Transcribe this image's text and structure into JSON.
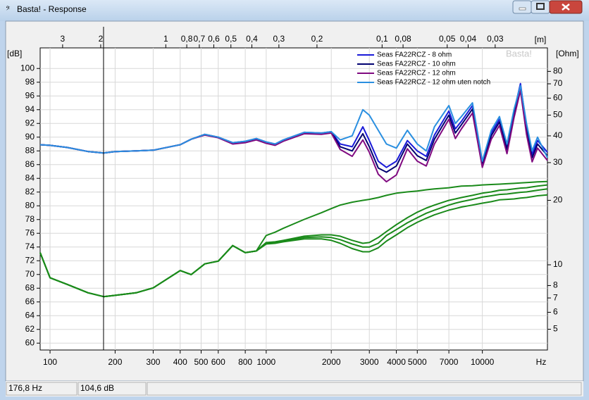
{
  "window": {
    "title": "Basta! - Response",
    "watermark": "Basta!",
    "status": [
      "176,8 Hz",
      "104,6 dB"
    ]
  },
  "chart_data": {
    "type": "line",
    "ylabel": "[dB]",
    "y2label": "[Ohm]",
    "xlabel": "Hz",
    "x2label": "[m]",
    "xscale": "log",
    "y2scale": "log",
    "x2scale": "log",
    "grid": true,
    "legend": "top-right",
    "xlim": [
      90,
      20000
    ],
    "ylim": [
      59,
      103
    ],
    "y2lim": [
      4,
      103
    ],
    "x2lim": [
      3.81,
      0.0172
    ],
    "xticks": [
      100,
      200,
      300,
      400,
      500,
      600,
      800,
      1000,
      2000,
      3000,
      4000,
      5000,
      7000,
      10000
    ],
    "yticks": [
      60,
      62,
      64,
      66,
      68,
      70,
      72,
      74,
      76,
      78,
      80,
      82,
      84,
      86,
      88,
      90,
      92,
      94,
      96,
      98,
      100
    ],
    "y2ticks": [
      5,
      6,
      7,
      8,
      10,
      20,
      30,
      40,
      50,
      60,
      70,
      80
    ],
    "x2ticks": [
      3,
      2,
      1,
      {
        "value": 0.8,
        "label": "0,8"
      },
      {
        "value": 0.7,
        "label": "0,7"
      },
      {
        "value": 0.6,
        "label": "0,6"
      },
      {
        "value": 0.5,
        "label": "0,5"
      },
      {
        "value": 0.4,
        "label": "0,4"
      },
      {
        "value": 0.3,
        "label": "0,3"
      },
      {
        "value": 0.2,
        "label": "0,2"
      },
      {
        "value": 0.1,
        "label": "0,1"
      },
      {
        "value": 0.08,
        "label": "0,08"
      },
      {
        "value": 0.05,
        "label": "0,05"
      },
      {
        "value": 0.04,
        "label": "0,04"
      },
      {
        "value": 0.03,
        "label": "0,03"
      }
    ],
    "cursor": {
      "value": 176.8,
      "label": "176,8 Hz"
    },
    "x": [
      90,
      100,
      120,
      150,
      177,
      200,
      250,
      300,
      400,
      450,
      520,
      600,
      700,
      800,
      900,
      1000,
      1100,
      1200,
      1500,
      1800,
      2000,
      2200,
      2500,
      2800,
      3000,
      3300,
      3600,
      4000,
      4500,
      5000,
      5500,
      6000,
      7000,
      7500,
      8000,
      9000,
      10000,
      11000,
      12000,
      13000,
      14000,
      15000,
      16000,
      17000,
      18000,
      20000
    ],
    "series": [
      {
        "name": "Seas FA22RCZ - 8 ohm",
        "color": "#1a1ad8",
        "values": [
          88.9,
          88.8,
          88.5,
          87.9,
          87.7,
          87.9,
          88.0,
          88.1,
          88.9,
          89.7,
          90.4,
          90.0,
          89.2,
          89.4,
          89.8,
          89.3,
          89.0,
          89.6,
          90.7,
          90.6,
          90.8,
          89.0,
          88.6,
          91.5,
          89.5,
          86.5,
          85.6,
          86.5,
          89.5,
          88.0,
          87.2,
          90.3,
          93.8,
          91.2,
          92.3,
          94.6,
          86.3,
          90.6,
          92.6,
          88.6,
          93.7,
          97.8,
          91.5,
          87.5,
          89.5,
          87.8
        ]
      },
      {
        "name": "Seas FA22RCZ - 10 ohm",
        "color": "#000070",
        "values": [
          88.9,
          88.8,
          88.5,
          87.9,
          87.7,
          87.9,
          88.0,
          88.1,
          88.9,
          89.7,
          90.4,
          90.0,
          89.1,
          89.3,
          89.7,
          89.2,
          88.9,
          89.5,
          90.6,
          90.5,
          90.7,
          88.6,
          88.0,
          90.5,
          88.6,
          85.5,
          84.9,
          85.8,
          89.0,
          87.3,
          86.6,
          89.7,
          93.2,
          90.6,
          91.8,
          94.1,
          86.0,
          90.2,
          92.2,
          88.2,
          93.3,
          97.3,
          91.0,
          87.0,
          89.0,
          87.3
        ]
      },
      {
        "name": "Seas FA22RCZ - 12 ohm",
        "color": "#800a80",
        "values": [
          88.9,
          88.8,
          88.5,
          87.9,
          87.7,
          87.9,
          88.0,
          88.1,
          88.9,
          89.7,
          90.3,
          89.9,
          89.0,
          89.2,
          89.6,
          89.1,
          88.8,
          89.4,
          90.5,
          90.4,
          90.6,
          88.2,
          87.2,
          89.6,
          87.8,
          84.6,
          83.5,
          84.5,
          88.3,
          86.5,
          85.8,
          89.0,
          92.6,
          89.8,
          91.2,
          93.5,
          85.6,
          89.7,
          91.7,
          87.6,
          92.8,
          96.8,
          90.4,
          86.4,
          88.4,
          86.6
        ]
      },
      {
        "name": "Seas FA22RCZ - 12 ohm uten notch",
        "color": "#2a8fe0",
        "values": [
          88.9,
          88.8,
          88.5,
          87.9,
          87.7,
          87.9,
          88.0,
          88.1,
          88.9,
          89.7,
          90.4,
          90.0,
          89.2,
          89.4,
          89.8,
          89.3,
          89.0,
          89.6,
          90.7,
          90.6,
          90.8,
          89.6,
          90.2,
          94.0,
          93.2,
          91.0,
          89.0,
          88.4,
          91.0,
          89.0,
          88.0,
          91.5,
          94.6,
          92.0,
          93.0,
          95.0,
          86.5,
          91.0,
          93.0,
          89.0,
          94.0,
          97.5,
          92.0,
          88.0,
          90.0,
          87.0
        ]
      },
      {
        "axis": "y2",
        "color": "#1a8a1a",
        "values": [
          11.4,
          8.7,
          8.1,
          7.4,
          7.1,
          7.2,
          7.4,
          7.8,
          9.4,
          9.0,
          10.1,
          10.4,
          12.3,
          11.4,
          11.6,
          12.7,
          12.8,
          13.0,
          13.6,
          13.8,
          13.8,
          13.6,
          13.0,
          12.6,
          12.7,
          13.4,
          14.3,
          15.4,
          16.6,
          17.6,
          18.4,
          19.0,
          20.0,
          20.3,
          20.6,
          21.1,
          21.6,
          21.9,
          22.3,
          22.4,
          22.6,
          22.8,
          22.9,
          23.1,
          23.3,
          23.6
        ]
      },
      {
        "axis": "y2",
        "color": "#1a8a1a",
        "values": [
          11.4,
          8.7,
          8.1,
          7.4,
          7.1,
          7.2,
          7.4,
          7.8,
          9.4,
          9.0,
          10.1,
          10.4,
          12.3,
          11.4,
          11.6,
          12.6,
          12.7,
          12.9,
          13.4,
          13.5,
          13.4,
          13.1,
          12.5,
          12.1,
          12.1,
          12.6,
          13.7,
          14.6,
          15.7,
          16.6,
          17.4,
          18.0,
          19.0,
          19.4,
          19.7,
          20.2,
          20.7,
          21.0,
          21.3,
          21.4,
          21.6,
          21.8,
          21.9,
          22.1,
          22.3,
          22.6
        ]
      },
      {
        "axis": "y2",
        "color": "#1a8a1a",
        "values": [
          11.4,
          8.7,
          8.1,
          7.4,
          7.1,
          7.2,
          7.4,
          7.8,
          9.4,
          9.0,
          10.1,
          10.4,
          12.3,
          11.4,
          11.6,
          12.5,
          12.6,
          12.8,
          13.2,
          13.2,
          13.0,
          12.6,
          11.9,
          11.5,
          11.5,
          12.0,
          12.9,
          13.8,
          14.9,
          15.8,
          16.5,
          17.1,
          18.0,
          18.3,
          18.6,
          19.0,
          19.4,
          19.7,
          20.1,
          20.2,
          20.3,
          20.5,
          20.6,
          20.8,
          21.0,
          21.2
        ]
      },
      {
        "axis": "y2",
        "color": "#1a8a1a",
        "values": [
          11.4,
          8.7,
          8.1,
          7.4,
          7.1,
          7.2,
          7.4,
          7.8,
          9.4,
          9.0,
          10.1,
          10.4,
          12.3,
          11.4,
          11.6,
          13.7,
          14.2,
          14.8,
          16.3,
          17.5,
          18.3,
          19.0,
          19.6,
          20.0,
          20.2,
          20.6,
          21.1,
          21.6,
          21.9,
          22.1,
          22.4,
          22.6,
          22.9,
          23.1,
          23.3,
          23.4,
          23.6,
          23.7,
          23.8,
          23.9,
          24.0,
          24.1,
          24.2,
          24.3,
          24.4,
          24.5
        ]
      }
    ]
  }
}
